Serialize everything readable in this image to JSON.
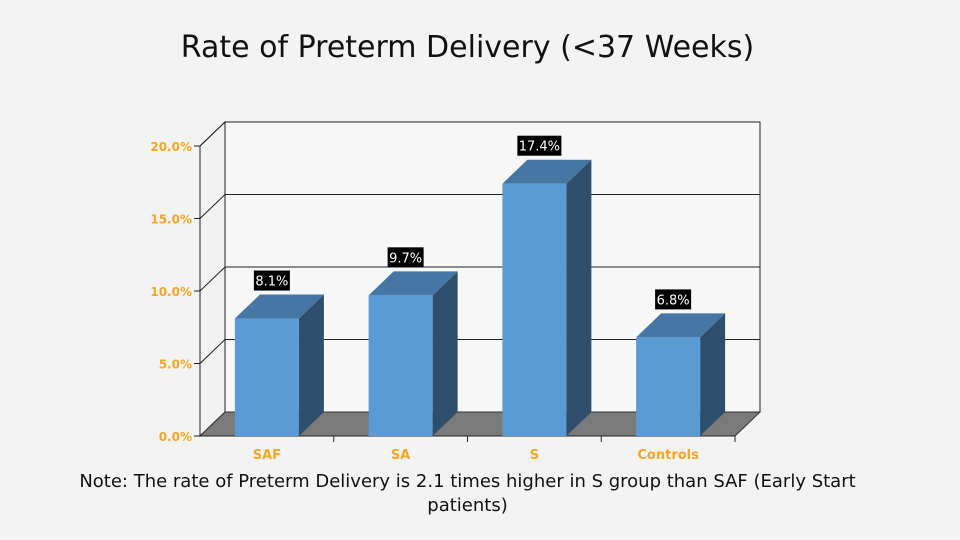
{
  "slide": {
    "title": "Rate of Preterm Delivery (<37 Weeks)",
    "note": "Note:  The rate of Preterm Delivery is 2.1 times higher in S group than SAF (Early Start patients)"
  },
  "chart_data": {
    "type": "bar",
    "categories": [
      "SAF",
      "SA",
      "S",
      "Controls"
    ],
    "values": [
      8.1,
      9.7,
      17.4,
      6.8
    ],
    "data_labels": [
      "8.1%",
      "9.7%",
      "17.4%",
      "6.8%"
    ],
    "ylim": [
      0,
      20
    ],
    "yticks": [
      0,
      5,
      10,
      15,
      20
    ],
    "ytick_labels": [
      "0.0%",
      "5.0%",
      "10.0%",
      "15.0%",
      "20.0%"
    ],
    "grid": true,
    "legend": "none",
    "colors": {
      "bar_front": "#5b9bd5",
      "bar_top": "#4676a4",
      "bar_side": "#2f4e6c",
      "floor": "#7a7a7a",
      "tick_label": "#f5a623",
      "category_label": "#f5a623",
      "data_label_bg": "#000000",
      "data_label_text": "#ffffff"
    }
  }
}
